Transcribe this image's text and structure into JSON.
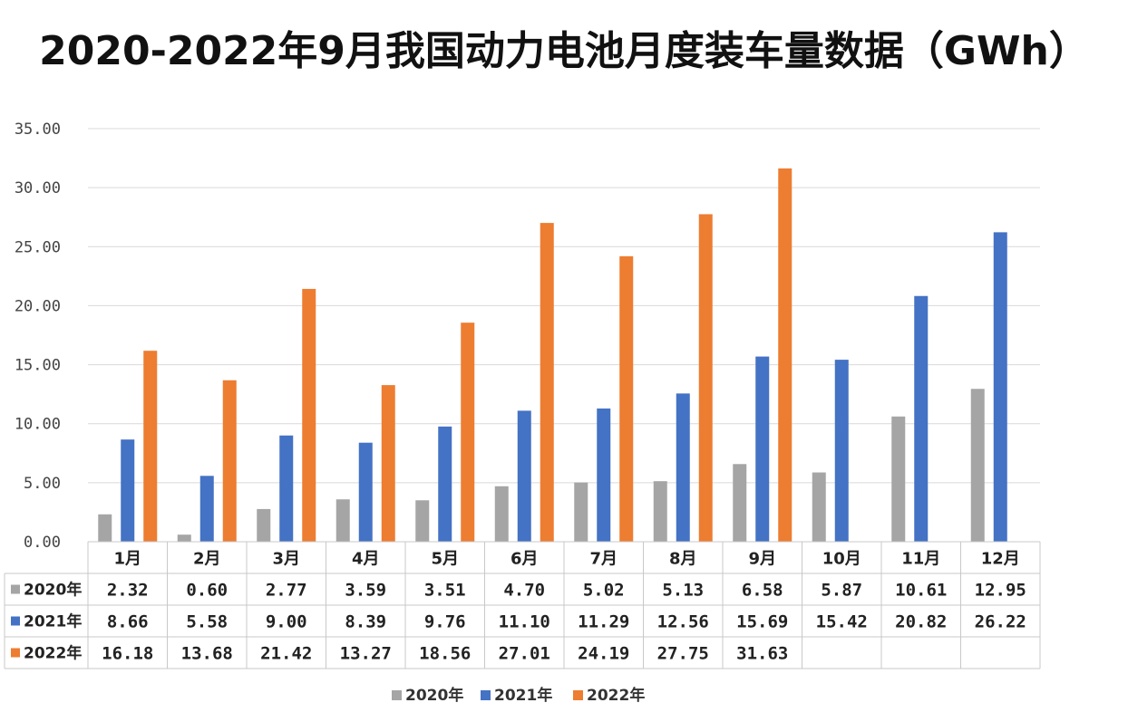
{
  "title": "2020-2022年9月我国动力电池月度装车量数据（GWh）",
  "colors": {
    "s2020": "#a5a5a5",
    "s2021": "#4472c4",
    "s2022": "#ed7d31",
    "grid": "#d9d9d9",
    "table_border": "#c8c8c8"
  },
  "chart_data": {
    "type": "bar",
    "title": "2020-2022年9月我国动力电池月度装车量数据（GWh）",
    "categories": [
      "1月",
      "2月",
      "3月",
      "4月",
      "5月",
      "6月",
      "7月",
      "8月",
      "9月",
      "10月",
      "11月",
      "12月"
    ],
    "series": [
      {
        "name": "2020年",
        "values": [
          2.32,
          0.6,
          2.77,
          3.59,
          3.51,
          4.7,
          5.02,
          5.13,
          6.58,
          5.87,
          10.61,
          12.95
        ]
      },
      {
        "name": "2021年",
        "values": [
          8.66,
          5.58,
          9.0,
          8.39,
          9.76,
          11.1,
          11.29,
          12.56,
          15.69,
          15.42,
          20.82,
          26.22
        ]
      },
      {
        "name": "2022年",
        "values": [
          16.18,
          13.68,
          21.42,
          13.27,
          18.56,
          27.01,
          24.19,
          27.75,
          31.63,
          null,
          null,
          null
        ]
      }
    ],
    "ylim": [
      0,
      35
    ],
    "yticks": [
      "0.00",
      "5.00",
      "10.00",
      "15.00",
      "20.00",
      "25.00",
      "30.00",
      "35.00"
    ],
    "grid": true,
    "legend": "bottom",
    "data_table": true
  }
}
